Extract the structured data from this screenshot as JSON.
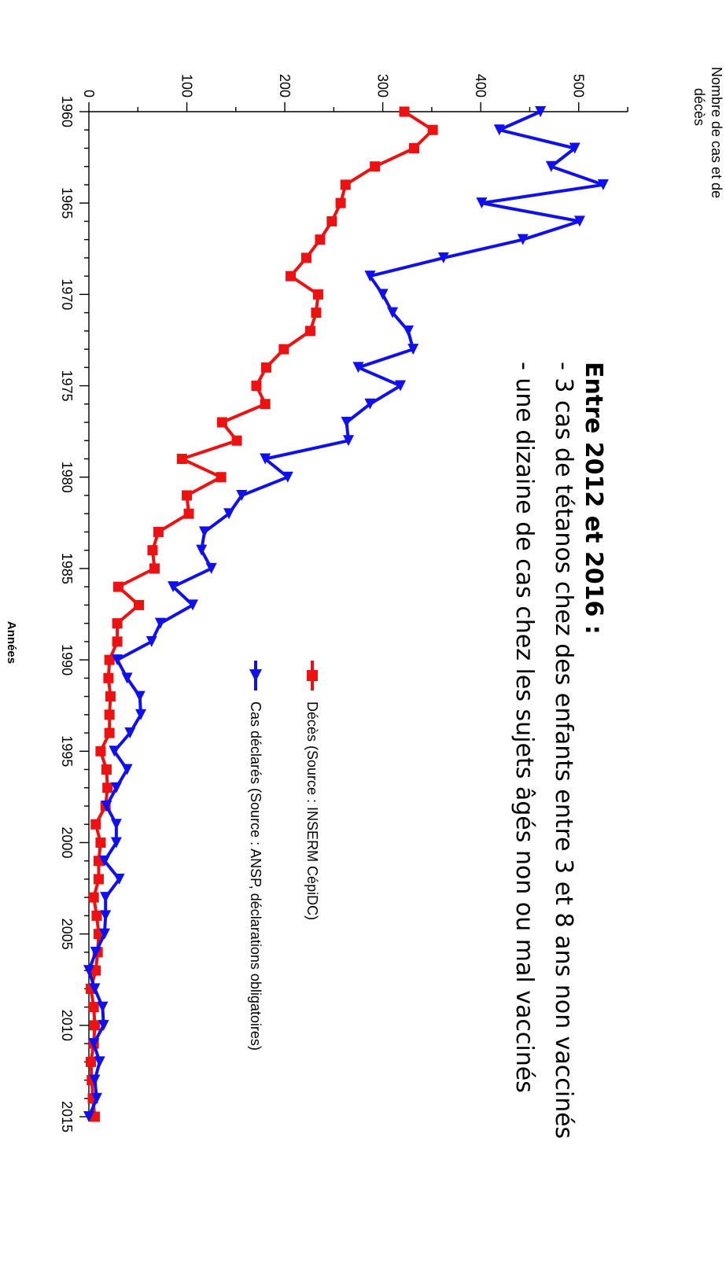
{
  "chart_data": {
    "type": "line",
    "title": "",
    "xlabel": "Années",
    "ylabel_lines": [
      "Nombre de cas et de",
      "décès"
    ],
    "xlim": [
      1960,
      2015
    ],
    "ylim": [
      0,
      550
    ],
    "x_ticks": [
      1960,
      1965,
      1970,
      1975,
      1980,
      1985,
      1990,
      1995,
      2000,
      2005,
      2010,
      2015
    ],
    "y_ticks": [
      0,
      100,
      200,
      300,
      400,
      500
    ],
    "legend_position": "top-right",
    "grid": false,
    "annotation": {
      "title": "Entre 2012 et 2016 :",
      "lines": [
        "- 3 cas de tétanos chez des enfants entre 3 et 8 ans non vaccinés",
        "- une dizaine de cas chez les sujets âgés non ou mal vaccinés"
      ]
    },
    "series": [
      {
        "name": "Décès (Source : INSERM CépiDC)",
        "color": "#ee1111",
        "marker": "square",
        "x": [
          1960,
          1961,
          1962,
          1963,
          1964,
          1965,
          1966,
          1967,
          1968,
          1969,
          1970,
          1971,
          1972,
          1973,
          1974,
          1975,
          1976,
          1977,
          1978,
          1979,
          1980,
          1981,
          1982,
          1983,
          1984,
          1985,
          1986,
          1987,
          1988,
          1989,
          1990,
          1991,
          1992,
          1993,
          1994,
          1995,
          1996,
          1997,
          1998,
          1999,
          2000,
          2001,
          2002,
          2003,
          2004,
          2005,
          2006,
          2007,
          2008,
          2009,
          2010,
          2011,
          2012,
          2013,
          2014,
          2015
        ],
        "y": [
          322,
          351,
          332,
          292,
          262,
          257,
          248,
          236,
          222,
          206,
          234,
          232,
          226,
          199,
          181,
          171,
          180,
          136,
          151,
          95,
          135,
          100,
          102,
          71,
          65,
          67,
          30,
          51,
          29,
          29,
          21,
          20,
          22,
          21,
          21,
          12,
          18,
          19,
          17,
          7,
          12,
          10,
          10,
          5,
          8,
          10,
          9,
          7,
          2,
          5,
          6,
          5,
          2,
          3,
          4,
          6
        ]
      },
      {
        "name": "Cas déclarés (Source : ANSP, déclarations obligatoires)",
        "color": "#1010ee",
        "marker": "triangle",
        "x": [
          1960,
          1961,
          1962,
          1963,
          1964,
          1965,
          1966,
          1967,
          1968,
          1969,
          1970,
          1971,
          1972,
          1973,
          1974,
          1975,
          1976,
          1977,
          1978,
          1979,
          1980,
          1981,
          1982,
          1983,
          1984,
          1985,
          1986,
          1987,
          1988,
          1989,
          1990,
          1991,
          1992,
          1993,
          1994,
          1995,
          1996,
          1997,
          1998,
          1999,
          2000,
          2001,
          2002,
          2003,
          2004,
          2005,
          2006,
          2007,
          2008,
          2009,
          2010,
          2011,
          2012,
          2013,
          2014,
          2015
        ],
        "y": [
          461,
          419,
          496,
          472,
          525,
          401,
          501,
          443,
          362,
          287,
          300,
          310,
          326,
          331,
          275,
          318,
          287,
          263,
          265,
          180,
          203,
          156,
          143,
          118,
          115,
          125,
          86,
          106,
          73,
          64,
          29,
          39,
          52,
          53,
          42,
          26,
          39,
          28,
          18,
          28,
          28,
          16,
          31,
          17,
          17,
          16,
          7,
          0,
          6,
          14,
          15,
          5,
          11,
          6,
          8,
          0
        ]
      }
    ]
  }
}
